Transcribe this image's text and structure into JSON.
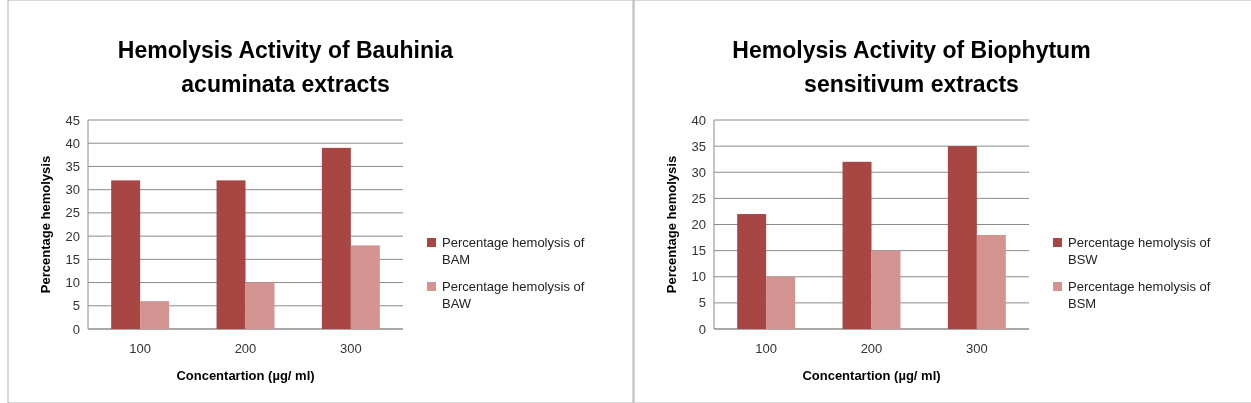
{
  "chart_data": [
    {
      "type": "bar",
      "title": "Hemolysis Activity of Bauhinia acuminata extracts",
      "xlabel": "Concentartion (µg/ ml)",
      "ylabel": "Percentage hemolysis",
      "categories": [
        "100",
        "200",
        "300"
      ],
      "series": [
        {
          "name": "Percentage hemolysis of BAM",
          "color": "#a84643",
          "values": [
            32,
            32,
            39
          ]
        },
        {
          "name": "Percentage hemolysis of BAW",
          "color": "#d39391",
          "values": [
            6,
            10,
            18
          ]
        }
      ],
      "ylim": [
        0,
        45
      ],
      "yticks": [
        0,
        5,
        10,
        15,
        20,
        25,
        30,
        35,
        40,
        45
      ],
      "grid": "y",
      "legend": "right"
    },
    {
      "type": "bar",
      "title": "Hemolysis Activity of Biophytum sensitivum extracts",
      "xlabel": "Concentartion (µg/ ml)",
      "ylabel": "Percentage hemolysis",
      "categories": [
        "100",
        "200",
        "300"
      ],
      "series": [
        {
          "name": "Percentage hemolysis of BSW",
          "color": "#a84643",
          "values": [
            22,
            32,
            35
          ]
        },
        {
          "name": "Percentage hemolysis of BSM",
          "color": "#d39391",
          "values": [
            10,
            15,
            18
          ]
        }
      ],
      "ylim": [
        0,
        40
      ],
      "yticks": [
        0,
        5,
        10,
        15,
        20,
        25,
        30,
        35,
        40
      ],
      "grid": "y",
      "legend": "right"
    }
  ]
}
